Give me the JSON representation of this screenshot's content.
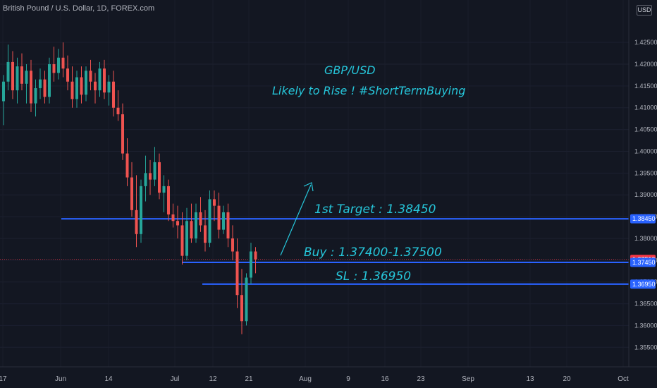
{
  "header": {
    "symbol": "British Pound / U.S. Dollar, 1D, FOREX.com",
    "currency": "USD"
  },
  "annotations": {
    "title": "GBP/USD",
    "subtitle": "Likely to Rise ! #ShortTermBuying",
    "target": "1st Target : 1.38450",
    "buy": "Buy : 1.37400-1.37500",
    "sl": "SL : 1.36950"
  },
  "colors": {
    "bg": "#131722",
    "up": "#26a69a",
    "down": "#ef5350",
    "level": "#2962ff",
    "annotation": "#26c6da",
    "last": "#f23645"
  },
  "chart_data": {
    "type": "candlestick",
    "y_axis": {
      "range": [
        1.351,
        1.4315
      ],
      "ticks": [
        "1.35500",
        "1.36000",
        "1.36500",
        "1.37000",
        "1.37500",
        "1.38000",
        "1.38500",
        "1.39000",
        "1.39500",
        "1.40000",
        "1.40500",
        "1.41000",
        "1.41500",
        "1.42000",
        "1.42500"
      ]
    },
    "x_axis": {
      "tick_labels": [
        "17",
        "Jun",
        "14",
        "Jul",
        "12",
        "21",
        "Aug",
        "9",
        "16",
        "23",
        "Sep",
        "13",
        "20",
        "Oct"
      ]
    },
    "price_labels": [
      {
        "value": 1.3845,
        "text": "1.38450",
        "color": "#2962ff"
      },
      {
        "value": 1.37519,
        "text": "1.37519",
        "color": "#f23645"
      },
      {
        "value": 1.3745,
        "text": "1.37450",
        "color": "#2962ff"
      },
      {
        "value": 1.3695,
        "text": "1.36950",
        "color": "#2962ff"
      }
    ],
    "levels": [
      {
        "name": "1st Target",
        "value": 1.3845
      },
      {
        "name": "Buy",
        "value": 1.3745
      },
      {
        "name": "SL",
        "value": 1.3695
      }
    ],
    "last_price": 1.37519,
    "candles": [
      [
        1.4115,
        1.4175,
        1.406,
        1.416
      ],
      [
        1.416,
        1.4245,
        1.414,
        1.4205
      ],
      [
        1.4205,
        1.423,
        1.412,
        1.414
      ],
      [
        1.414,
        1.4215,
        1.411,
        1.4195
      ],
      [
        1.4195,
        1.4225,
        1.414,
        1.4155
      ],
      [
        1.4155,
        1.42,
        1.411,
        1.4185
      ],
      [
        1.4185,
        1.421,
        1.409,
        1.411
      ],
      [
        1.411,
        1.4165,
        1.408,
        1.4145
      ],
      [
        1.4145,
        1.419,
        1.412,
        1.4165
      ],
      [
        1.4165,
        1.4185,
        1.411,
        1.4125
      ],
      [
        1.4125,
        1.4215,
        1.411,
        1.42
      ],
      [
        1.42,
        1.424,
        1.416,
        1.418
      ],
      [
        1.418,
        1.4235,
        1.4165,
        1.4215
      ],
      [
        1.4215,
        1.425,
        1.417,
        1.419
      ],
      [
        1.419,
        1.422,
        1.414,
        1.416
      ],
      [
        1.416,
        1.4195,
        1.41,
        1.412
      ],
      [
        1.412,
        1.4185,
        1.41,
        1.417
      ],
      [
        1.417,
        1.4195,
        1.411,
        1.413
      ],
      [
        1.413,
        1.4195,
        1.4115,
        1.4185
      ],
      [
        1.4185,
        1.421,
        1.414,
        1.416
      ],
      [
        1.416,
        1.418,
        1.411,
        1.414
      ],
      [
        1.414,
        1.4205,
        1.4125,
        1.419
      ],
      [
        1.419,
        1.421,
        1.412,
        1.4135
      ],
      [
        1.4135,
        1.4175,
        1.4105,
        1.416
      ],
      [
        1.416,
        1.4185,
        1.408,
        1.41
      ],
      [
        1.41,
        1.414,
        1.407,
        1.4085
      ],
      [
        1.4085,
        1.411,
        1.398,
        1.3995
      ],
      [
        1.3995,
        1.403,
        1.392,
        1.394
      ],
      [
        1.394,
        1.3975,
        1.385,
        1.3865
      ],
      [
        1.3865,
        1.3945,
        1.378,
        1.381
      ],
      [
        1.381,
        1.3935,
        1.379,
        1.392
      ],
      [
        1.392,
        1.399,
        1.3885,
        1.395
      ],
      [
        1.395,
        1.398,
        1.39,
        1.3935
      ],
      [
        1.3935,
        1.401,
        1.392,
        1.3975
      ],
      [
        1.3975,
        1.3995,
        1.389,
        1.3905
      ],
      [
        1.3905,
        1.3945,
        1.386,
        1.392
      ],
      [
        1.392,
        1.3935,
        1.384,
        1.3855
      ],
      [
        1.3855,
        1.388,
        1.3825,
        1.384
      ],
      [
        1.384,
        1.3875,
        1.38,
        1.383
      ],
      [
        1.383,
        1.386,
        1.374,
        1.376
      ],
      [
        1.376,
        1.387,
        1.375,
        1.384
      ],
      [
        1.384,
        1.388,
        1.379,
        1.38
      ],
      [
        1.38,
        1.388,
        1.379,
        1.386
      ],
      [
        1.386,
        1.3895,
        1.3815,
        1.383
      ],
      [
        1.383,
        1.3865,
        1.377,
        1.379
      ],
      [
        1.379,
        1.391,
        1.378,
        1.389
      ],
      [
        1.389,
        1.391,
        1.384,
        1.3875
      ],
      [
        1.3875,
        1.3905,
        1.38,
        1.382
      ],
      [
        1.382,
        1.3875,
        1.381,
        1.386
      ],
      [
        1.386,
        1.388,
        1.378,
        1.38
      ],
      [
        1.38,
        1.383,
        1.375,
        1.377
      ],
      [
        1.377,
        1.38,
        1.364,
        1.367
      ],
      [
        1.367,
        1.373,
        1.358,
        1.361
      ],
      [
        1.361,
        1.372,
        1.36,
        1.371
      ],
      [
        1.371,
        1.379,
        1.3695,
        1.377
      ],
      [
        1.377,
        1.378,
        1.372,
        1.3752
      ]
    ]
  }
}
